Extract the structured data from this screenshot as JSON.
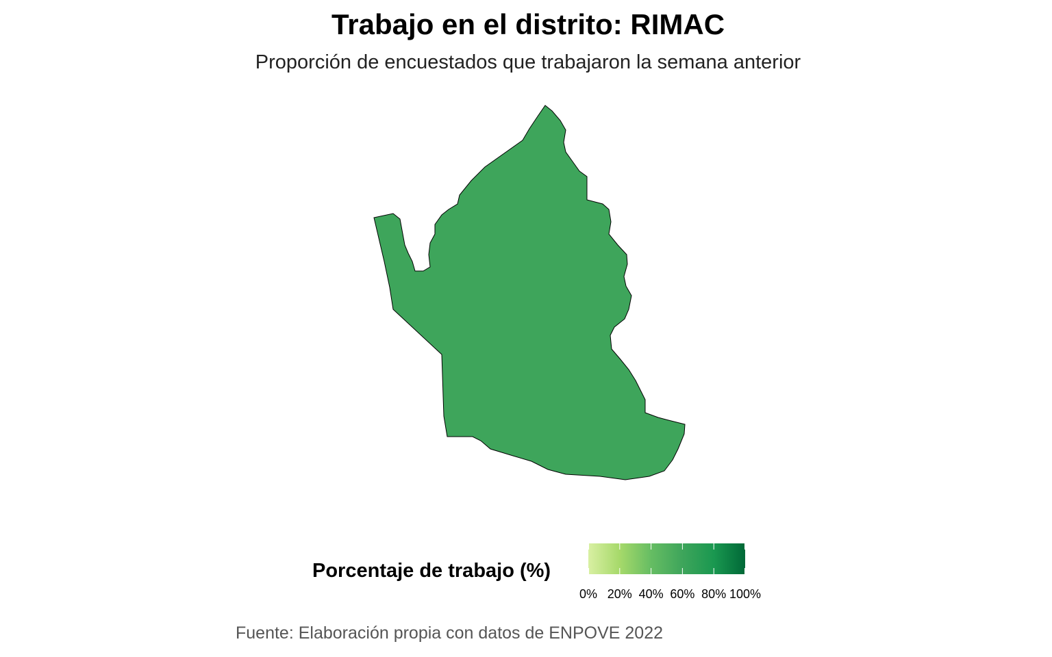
{
  "title": "Trabajo en el distrito: RIMAC",
  "subtitle": "Proporción de encuestados que trabajaron la semana anterior",
  "map": {
    "region_name": "RIMAC",
    "value_pct": 62,
    "fill_color": "#3ea55b",
    "stroke_color": "#000000"
  },
  "legend": {
    "title": "Porcentaje de trabajo (%)",
    "range": [
      0,
      100
    ],
    "ticks": [
      {
        "value": 0,
        "label": "0%"
      },
      {
        "value": 20,
        "label": "20%"
      },
      {
        "value": 40,
        "label": "40%"
      },
      {
        "value": 60,
        "label": "60%"
      },
      {
        "value": 80,
        "label": "80%"
      },
      {
        "value": 100,
        "label": "100%"
      }
    ],
    "colors": [
      "#d9f0a3",
      "#a6d96a",
      "#66bd63",
      "#3ea55b",
      "#1a9850",
      "#006837"
    ]
  },
  "caption": "Fuente: Elaboración propia con datos de ENPOVE 2022"
}
